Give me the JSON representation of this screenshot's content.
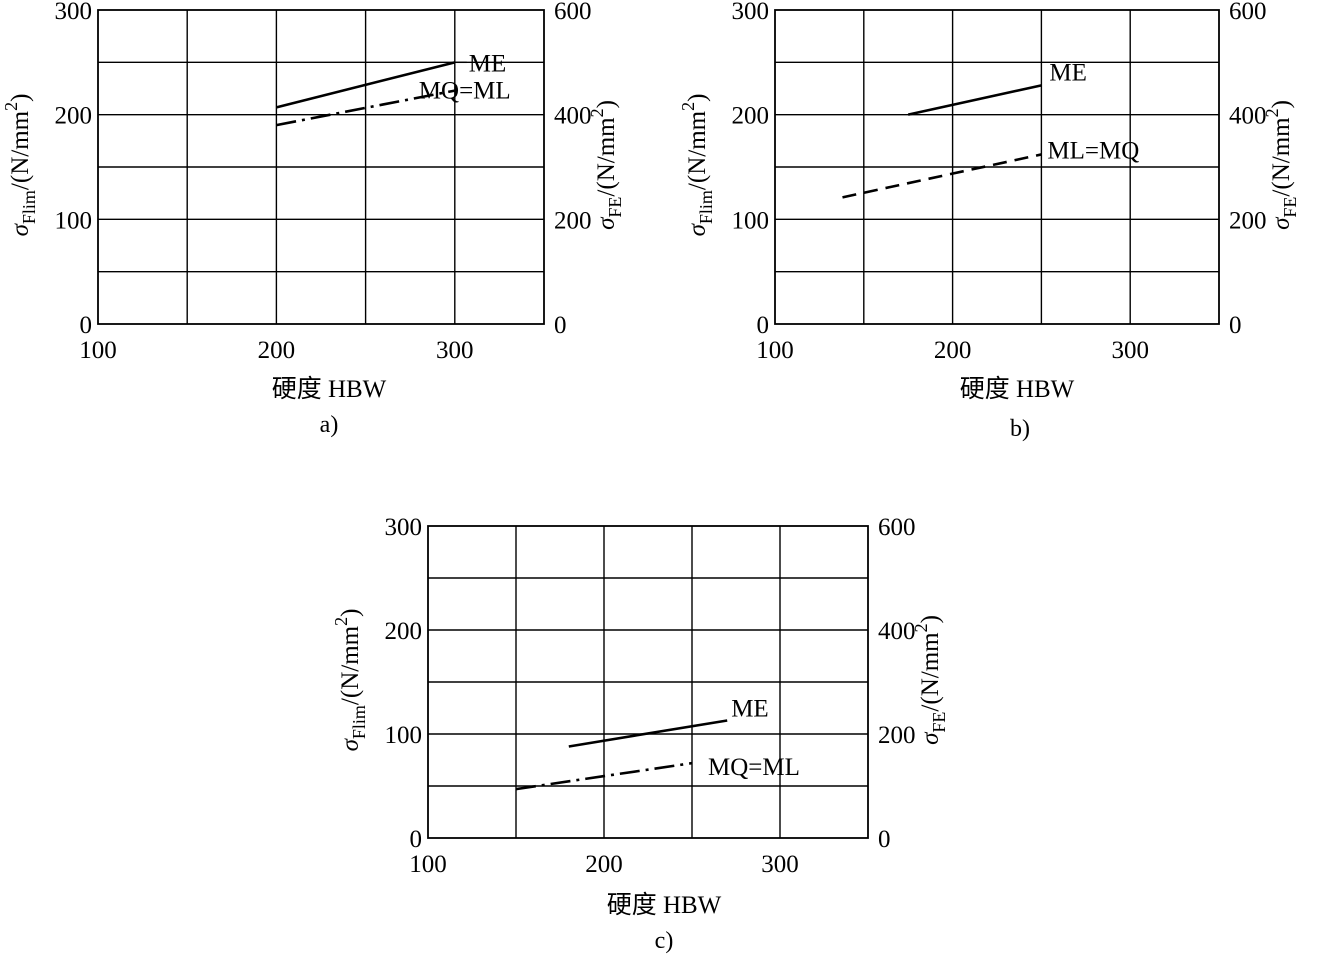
{
  "charts": [
    {
      "id": "a",
      "sublabel": "a)",
      "xlabel": "硬度 HBW",
      "ylabel_left": {
        "sym": "σ",
        "sub": "Flim",
        "unit": "/(N/mm",
        "sup": "2",
        "close": ")"
      },
      "ylabel_right": {
        "sym": "σ",
        "sub": "FE",
        "unit": "/(N/mm",
        "sup": "2",
        "close": ")"
      },
      "xticks": [
        "100",
        "200",
        "300"
      ],
      "yticks_left": [
        "0",
        "100",
        "200",
        "300"
      ],
      "yticks_right": [
        "0",
        "200",
        "400",
        "600"
      ]
    },
    {
      "id": "b",
      "sublabel": "b)",
      "xlabel": "硬度 HBW",
      "ylabel_left": {
        "sym": "σ",
        "sub": "Flim",
        "unit": "/(N/mm",
        "sup": "2",
        "close": ")"
      },
      "ylabel_right": {
        "sym": "σ",
        "sub": "FE",
        "unit": "/(N/mm",
        "sup": "2",
        "close": ")"
      },
      "xticks": [
        "100",
        "200",
        "300"
      ],
      "yticks_left": [
        "0",
        "100",
        "200",
        "300"
      ],
      "yticks_right": [
        "0",
        "200",
        "400",
        "600"
      ]
    },
    {
      "id": "c",
      "sublabel": "c)",
      "xlabel": "硬度 HBW",
      "ylabel_left": {
        "sym": "σ",
        "sub": "Flim",
        "unit": "/(N/mm",
        "sup": "2",
        "close": ")"
      },
      "ylabel_right": {
        "sym": "σ",
        "sub": "FE",
        "unit": "/(N/mm",
        "sup": "2",
        "close": ")"
      },
      "xticks": [
        "100",
        "200",
        "300"
      ],
      "yticks_left": [
        "0",
        "100",
        "200",
        "300"
      ],
      "yticks_right": [
        "0",
        "200",
        "400",
        "600"
      ]
    }
  ],
  "chart_data": [
    {
      "type": "line",
      "xlabel": "硬度 HBW",
      "ylabel": "σFlim/(N/mm2)",
      "y2label": "σFE/(N/mm2)",
      "xlim": [
        100,
        350
      ],
      "ylim": [
        0,
        300
      ],
      "y2lim": [
        0,
        600
      ],
      "grid": true,
      "series": [
        {
          "name": "ME",
          "style": "solid",
          "points": [
            [
              200,
              207
            ],
            [
              300,
              250
            ]
          ]
        },
        {
          "name": "MQ=ML",
          "style": "dashdot",
          "points": [
            [
              200,
              190
            ],
            [
              300,
              223
            ]
          ]
        }
      ]
    },
    {
      "type": "line",
      "xlabel": "硬度 HBW",
      "ylabel": "σFlim/(N/mm2)",
      "y2label": "σFE/(N/mm2)",
      "xlim": [
        100,
        350
      ],
      "ylim": [
        0,
        300
      ],
      "y2lim": [
        0,
        600
      ],
      "grid": true,
      "series": [
        {
          "name": "ME",
          "style": "solid",
          "points": [
            [
              175,
              200
            ],
            [
              250,
              228
            ]
          ]
        },
        {
          "name": "ML=MQ",
          "style": "dashed",
          "points": [
            [
              138,
              121
            ],
            [
              250,
              162
            ]
          ]
        }
      ]
    },
    {
      "type": "line",
      "xlabel": "硬度 HBW",
      "ylabel": "σFlim/(N/mm2)",
      "y2label": "σFE/(N/mm2)",
      "xlim": [
        100,
        350
      ],
      "ylim": [
        0,
        300
      ],
      "y2lim": [
        0,
        600
      ],
      "grid": true,
      "series": [
        {
          "name": "ME",
          "style": "solid",
          "points": [
            [
              180,
              88
            ],
            [
              270,
              113
            ]
          ]
        },
        {
          "name": "MQ=ML",
          "style": "dashdot",
          "points": [
            [
              150,
              47
            ],
            [
              250,
              72
            ]
          ]
        }
      ]
    }
  ]
}
